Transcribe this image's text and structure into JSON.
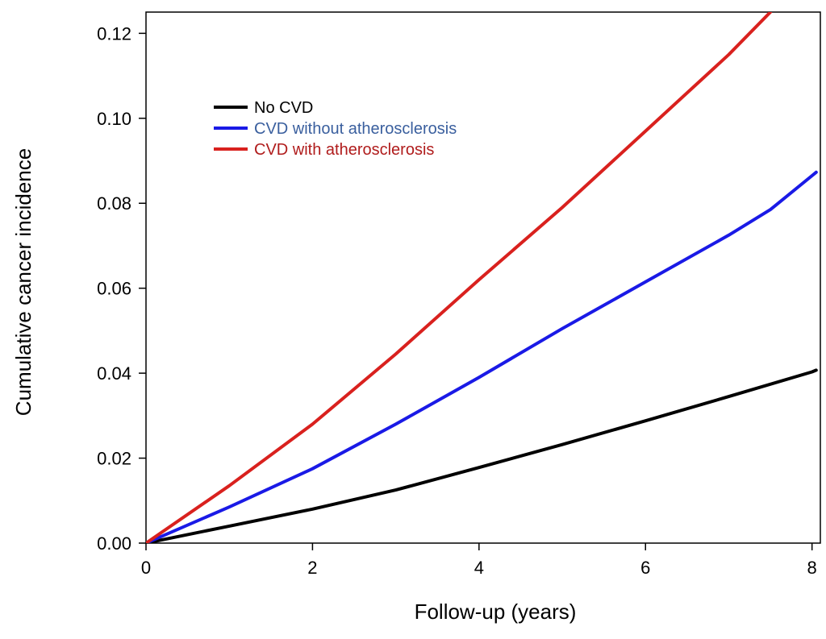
{
  "chart_data": {
    "type": "line",
    "xlabel": "Follow-up (years)",
    "ylabel": "Cumulative cancer incidence",
    "xlim": [
      0,
      8.1
    ],
    "ylim": [
      0,
      0.125
    ],
    "xticks": [
      0,
      2,
      4,
      6,
      8
    ],
    "xtick_labels": [
      "0",
      "2",
      "4",
      "6",
      "8"
    ],
    "yticks": [
      0,
      0.02,
      0.04,
      0.06,
      0.08,
      0.1,
      0.12
    ],
    "ytick_labels": [
      "0.00",
      "0.02",
      "0.04",
      "0.06",
      "0.08",
      "0.10",
      "0.12"
    ],
    "grid": false,
    "legend_position": "top-left",
    "series": [
      {
        "name": "No CVD",
        "color": "#000000",
        "text_color": "#000000",
        "x": [
          0,
          1,
          2,
          3,
          4,
          5,
          6,
          7,
          8,
          8.05
        ],
        "y": [
          0,
          0.004,
          0.008,
          0.0125,
          0.0178,
          0.0232,
          0.0288,
          0.0345,
          0.0403,
          0.0407
        ]
      },
      {
        "name": "CVD without atherosclerosis",
        "color": "#1a1ae6",
        "text_color": "#3a5f9e",
        "x": [
          0,
          1,
          2,
          3,
          4,
          5,
          6,
          7,
          7.5,
          8,
          8.05
        ],
        "y": [
          0,
          0.0085,
          0.0175,
          0.028,
          0.039,
          0.0505,
          0.0615,
          0.0725,
          0.0785,
          0.0865,
          0.0873
        ]
      },
      {
        "name": "CVD with atherosclerosis",
        "color": "#d9211e",
        "text_color": "#b01c1c",
        "x": [
          0,
          1,
          2,
          3,
          4,
          5,
          6,
          7,
          7.5
        ],
        "y": [
          0,
          0.0135,
          0.028,
          0.0445,
          0.062,
          0.079,
          0.097,
          0.115,
          0.125
        ]
      }
    ]
  }
}
